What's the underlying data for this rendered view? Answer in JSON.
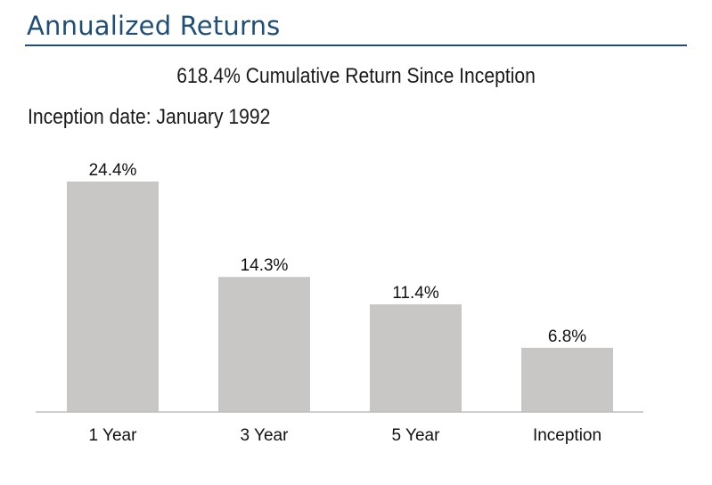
{
  "header": {
    "title": "Annualized Returns",
    "subtitle": "618.4% Cumulative Return Since Inception",
    "inception_note": "Inception date: January 1992"
  },
  "colors": {
    "title": "#1f4e79",
    "bar": "#c9c6c6",
    "baseline": "#bdbdbd"
  },
  "chart_data": {
    "type": "bar",
    "title": "",
    "xlabel": "",
    "ylabel": "",
    "categories": [
      "1 Year",
      "3 Year",
      "5 Year",
      "Inception"
    ],
    "values": [
      24.4,
      14.3,
      11.4,
      6.8
    ],
    "data_labels": [
      "24.4%",
      "14.3%",
      "11.4%",
      "6.8%"
    ],
    "ylim": [
      0,
      25
    ],
    "grid": false,
    "legend": "none"
  }
}
